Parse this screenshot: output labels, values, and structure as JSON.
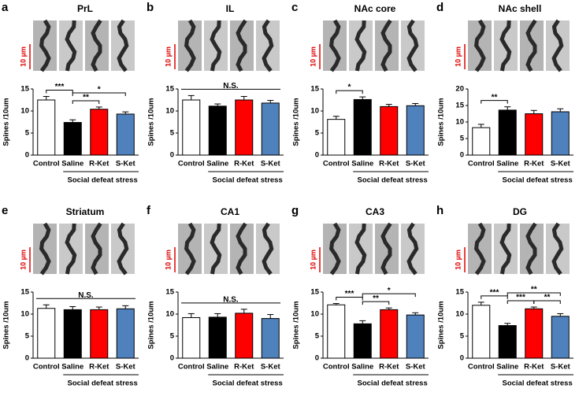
{
  "chart_data": [
    {
      "type": "bar",
      "panel": "a",
      "title": "PrL",
      "scale_label": "10 µm",
      "ylabel": "Spines /10um",
      "group_label": "Social defeat stress",
      "categories": [
        "Control",
        "Saline",
        "R-Ket",
        "S-Ket"
      ],
      "values": [
        12.5,
        7.4,
        10.4,
        9.3
      ],
      "errors": [
        0.8,
        0.6,
        0.5,
        0.5
      ],
      "colors": [
        "#ffffff",
        "#000000",
        "#ff0000",
        "#4f81bd"
      ],
      "ylim": [
        0,
        15
      ],
      "yticks": [
        0,
        5,
        10,
        15
      ],
      "significance": [
        {
          "pair": [
            "Control",
            "Saline"
          ],
          "label": "***"
        },
        {
          "pair": [
            "Saline",
            "R-Ket"
          ],
          "label": "**"
        },
        {
          "pair": [
            "Saline",
            "S-Ket"
          ],
          "label": "*"
        }
      ]
    },
    {
      "type": "bar",
      "panel": "b",
      "title": "IL",
      "scale_label": "10 µm",
      "ylabel": "Spines /10um",
      "group_label": "Social defeat stress",
      "categories": [
        "Control",
        "Saline",
        "R-Ket",
        "S-Ket"
      ],
      "values": [
        12.5,
        11.1,
        12.5,
        11.8
      ],
      "errors": [
        1.0,
        0.5,
        0.8,
        0.6
      ],
      "colors": [
        "#ffffff",
        "#000000",
        "#ff0000",
        "#4f81bd"
      ],
      "ylim": [
        0,
        15
      ],
      "yticks": [
        0,
        5,
        10,
        15
      ],
      "significance": [
        {
          "pair": [
            "Control",
            "S-Ket"
          ],
          "label": "N.S."
        }
      ]
    },
    {
      "type": "bar",
      "panel": "c",
      "title": "NAc core",
      "scale_label": "10 µm",
      "ylabel": "Spines /10um",
      "group_label": "Social defeat stress",
      "categories": [
        "Control",
        "Saline",
        "R-Ket",
        "S-Ket"
      ],
      "values": [
        8.1,
        12.6,
        11.0,
        11.2
      ],
      "errors": [
        0.7,
        0.6,
        0.5,
        0.5
      ],
      "colors": [
        "#ffffff",
        "#000000",
        "#ff0000",
        "#4f81bd"
      ],
      "ylim": [
        0,
        15
      ],
      "yticks": [
        0,
        5,
        10,
        15
      ],
      "significance": [
        {
          "pair": [
            "Control",
            "Saline"
          ],
          "label": "*"
        }
      ]
    },
    {
      "type": "bar",
      "panel": "d",
      "title": "NAc shell",
      "scale_label": "10 µm",
      "ylabel": "Spines /10um",
      "group_label": "Social defeat stress",
      "categories": [
        "Control",
        "Saline",
        "R-Ket",
        "S-Ket"
      ],
      "values": [
        8.3,
        13.6,
        12.5,
        13.1
      ],
      "errors": [
        1.0,
        1.0,
        1.0,
        0.9
      ],
      "colors": [
        "#ffffff",
        "#000000",
        "#ff0000",
        "#4f81bd"
      ],
      "ylim": [
        0,
        20
      ],
      "yticks": [
        0,
        5,
        10,
        15,
        20
      ],
      "significance": [
        {
          "pair": [
            "Control",
            "Saline"
          ],
          "label": "**"
        }
      ]
    },
    {
      "type": "bar",
      "panel": "e",
      "title": "Striatum",
      "scale_label": "10 µm",
      "ylabel": "Spines /10um",
      "group_label": "Social defeat stress",
      "categories": [
        "Control",
        "Saline",
        "R-Ket",
        "S-Ket"
      ],
      "values": [
        11.3,
        11.0,
        11.0,
        11.2
      ],
      "errors": [
        0.8,
        0.7,
        0.6,
        0.7
      ],
      "colors": [
        "#ffffff",
        "#000000",
        "#ff0000",
        "#4f81bd"
      ],
      "ylim": [
        0,
        15
      ],
      "yticks": [
        0,
        5,
        10,
        15
      ],
      "significance": [
        {
          "pair": [
            "Control",
            "S-Ket"
          ],
          "label": "N.S."
        }
      ]
    },
    {
      "type": "bar",
      "panel": "f",
      "title": "CA1",
      "scale_label": "10 µm",
      "ylabel": "Spines /10um",
      "group_label": "Social defeat stress",
      "categories": [
        "Control",
        "Saline",
        "R-Ket",
        "S-Ket"
      ],
      "values": [
        9.2,
        9.3,
        10.2,
        9.0
      ],
      "errors": [
        0.9,
        0.8,
        0.9,
        0.9
      ],
      "colors": [
        "#ffffff",
        "#000000",
        "#ff0000",
        "#4f81bd"
      ],
      "ylim": [
        0,
        15
      ],
      "yticks": [
        0,
        5,
        10,
        15
      ],
      "significance": [
        {
          "pair": [
            "Control",
            "S-Ket"
          ],
          "label": "N.S."
        }
      ]
    },
    {
      "type": "bar",
      "panel": "g",
      "title": "CA3",
      "scale_label": "10 µm",
      "ylabel": "Spines /10um",
      "group_label": "Social defeat stress",
      "categories": [
        "Control",
        "Saline",
        "R-Ket",
        "S-Ket"
      ],
      "values": [
        12.1,
        7.8,
        11.0,
        9.8
      ],
      "errors": [
        0.3,
        0.7,
        0.4,
        0.5
      ],
      "colors": [
        "#ffffff",
        "#000000",
        "#ff0000",
        "#4f81bd"
      ],
      "ylim": [
        0,
        15
      ],
      "yticks": [
        0,
        5,
        10,
        15
      ],
      "significance": [
        {
          "pair": [
            "Control",
            "Saline"
          ],
          "label": "***"
        },
        {
          "pair": [
            "Saline",
            "R-Ket"
          ],
          "label": "**"
        },
        {
          "pair": [
            "Saline",
            "S-Ket"
          ],
          "label": "*"
        }
      ]
    },
    {
      "type": "bar",
      "panel": "h",
      "title": "DG",
      "scale_label": "10 µm",
      "ylabel": "Spines /10um",
      "group_label": "Social defeat stress",
      "categories": [
        "Control",
        "Saline",
        "R-Ket",
        "S-Ket"
      ],
      "values": [
        12.0,
        7.4,
        11.2,
        9.5
      ],
      "errors": [
        0.7,
        0.5,
        0.4,
        0.6
      ],
      "colors": [
        "#ffffff",
        "#000000",
        "#ff0000",
        "#4f81bd"
      ],
      "ylim": [
        0,
        15
      ],
      "yticks": [
        0,
        5,
        10,
        15
      ],
      "significance": [
        {
          "pair": [
            "Control",
            "Saline"
          ],
          "label": "***"
        },
        {
          "pair": [
            "Saline",
            "R-Ket"
          ],
          "label": "***"
        },
        {
          "pair": [
            "R-Ket",
            "S-Ket"
          ],
          "label": "**"
        },
        {
          "pair": [
            "Saline",
            "S-Ket"
          ],
          "label": "**"
        }
      ]
    }
  ]
}
